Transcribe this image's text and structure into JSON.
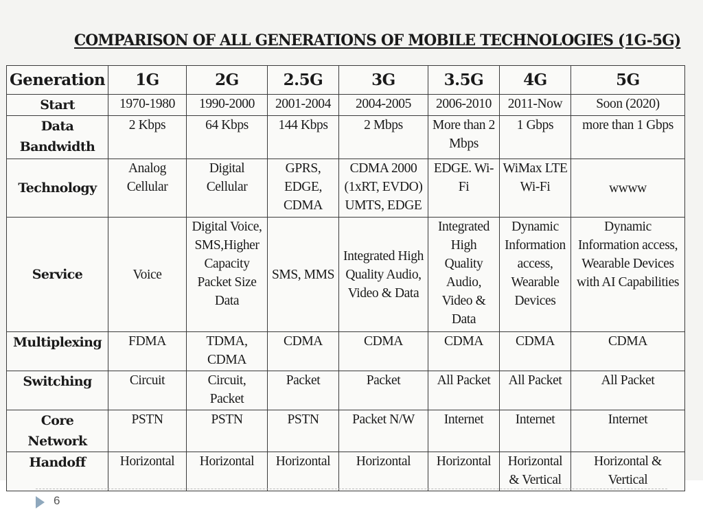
{
  "slide": {
    "title": "COMPARISON OF ALL GENERATIONS OF MOBILE TECHNOLOGIES (1G-5G)",
    "page_number": "6"
  },
  "table": {
    "header_label": "Generation",
    "generations": [
      "1G",
      "2G",
      "2.5G",
      "3G",
      "3.5G",
      "4G",
      "5G"
    ],
    "rows": [
      {
        "label": "Start",
        "cells": [
          "1970-1980",
          "1990-2000",
          "2001-2004",
          "2004-2005",
          "2006-2010",
          "2011-Now",
          "Soon (2020)"
        ]
      },
      {
        "label": "Data Bandwidth",
        "cells": [
          "2 Kbps",
          "64 Kbps",
          "144 Kbps",
          "2 Mbps",
          "More than 2 Mbps",
          "1 Gbps",
          "more than 1 Gbps"
        ]
      },
      {
        "label": "Technology",
        "cells": [
          "Analog Cellular",
          "Digital Cellular",
          "GPRS, EDGE, CDMA",
          "CDMA 2000 (1xRT, EVDO) UMTS, EDGE",
          "EDGE. Wi-Fi",
          "WiMax LTE Wi-Fi",
          "wwww"
        ]
      },
      {
        "label": "Service",
        "cells": [
          "Voice",
          "Digital Voice, SMS,Higher Capacity Packet Size Data",
          "SMS, MMS",
          "Integrated High Quality Audio, Video & Data",
          "Integrated High Quality Audio, Video & Data",
          "Dynamic Information access, Wearable Devices",
          "Dynamic Information access, Wearable Devices with AI Capabilities"
        ]
      },
      {
        "label": "Multiplexing",
        "cells": [
          "FDMA",
          "TDMA, CDMA",
          "CDMA",
          "CDMA",
          "CDMA",
          "CDMA",
          "CDMA"
        ]
      },
      {
        "label": "Switching",
        "cells": [
          "Circuit",
          "Circuit, Packet",
          "Packet",
          "Packet",
          "All Packet",
          "All Packet",
          "All Packet"
        ]
      },
      {
        "label": "Core Network",
        "cells": [
          "PSTN",
          "PSTN",
          "PSTN",
          "Packet N/W",
          "Internet",
          "Internet",
          "Internet"
        ]
      },
      {
        "label": "Handoff",
        "cells": [
          "Horizontal",
          "Horizontal",
          "Horizontal",
          "Horizontal",
          "Horizontal",
          "Horizontal & Vertical",
          "Horizontal & Vertical"
        ]
      }
    ]
  }
}
